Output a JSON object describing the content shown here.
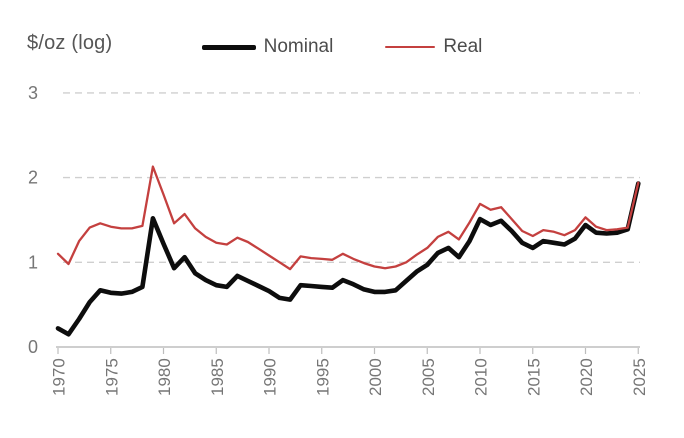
{
  "chart_data": {
    "type": "line",
    "title": "$/oz (log)",
    "xlabel": "",
    "ylabel": "$/oz (log)",
    "x": [
      1970,
      1971,
      1972,
      1973,
      1974,
      1975,
      1976,
      1977,
      1978,
      1979,
      1980,
      1981,
      1982,
      1983,
      1984,
      1985,
      1986,
      1987,
      1988,
      1989,
      1990,
      1991,
      1992,
      1993,
      1994,
      1995,
      1996,
      1997,
      1998,
      1999,
      2000,
      2001,
      2002,
      2003,
      2004,
      2005,
      2006,
      2007,
      2008,
      2009,
      2010,
      2011,
      2012,
      2013,
      2014,
      2015,
      2016,
      2017,
      2018,
      2019,
      2020,
      2021,
      2022,
      2023,
      2024,
      2025
    ],
    "series": [
      {
        "name": "Nominal",
        "color": "#0d0d0d",
        "stroke_width": 4.6,
        "values": [
          0.22,
          0.15,
          0.33,
          0.53,
          0.67,
          0.64,
          0.63,
          0.65,
          0.71,
          1.52,
          1.22,
          0.93,
          1.06,
          0.87,
          0.79,
          0.73,
          0.71,
          0.84,
          0.78,
          0.72,
          0.66,
          0.58,
          0.56,
          0.73,
          0.72,
          0.71,
          0.7,
          0.79,
          0.74,
          0.68,
          0.65,
          0.65,
          0.67,
          0.78,
          0.89,
          0.97,
          1.11,
          1.17,
          1.06,
          1.25,
          1.51,
          1.44,
          1.49,
          1.37,
          1.23,
          1.17,
          1.25,
          1.23,
          1.21,
          1.28,
          1.44,
          1.35,
          1.34,
          1.35,
          1.39,
          1.93
        ]
      },
      {
        "name": "Real",
        "color": "#c4403f",
        "stroke_width": 2.3,
        "values": [
          1.1,
          0.98,
          1.25,
          1.41,
          1.46,
          1.42,
          1.4,
          1.4,
          1.43,
          2.13,
          1.8,
          1.46,
          1.57,
          1.4,
          1.3,
          1.23,
          1.21,
          1.29,
          1.24,
          1.16,
          1.08,
          1.0,
          0.92,
          1.07,
          1.05,
          1.04,
          1.03,
          1.1,
          1.04,
          0.99,
          0.95,
          0.93,
          0.95,
          1.0,
          1.09,
          1.17,
          1.3,
          1.36,
          1.27,
          1.47,
          1.69,
          1.62,
          1.65,
          1.51,
          1.37,
          1.31,
          1.38,
          1.36,
          1.32,
          1.38,
          1.53,
          1.42,
          1.38,
          1.39,
          1.41,
          1.94
        ]
      }
    ],
    "xticks": [
      1970,
      1975,
      1980,
      1985,
      1990,
      1995,
      2000,
      2005,
      2010,
      2015,
      2020,
      2025
    ],
    "yticks": [
      0,
      1,
      2,
      3
    ],
    "xlim": [
      1970,
      2025
    ],
    "ylim": [
      0,
      3.05
    ],
    "grid": "horizontal dashed at y=1,2,3; solid axis baseline at y=0",
    "x_tick_label_rotation": -90,
    "legend_position": "top-center"
  },
  "colors": {
    "nominal_line": "#0d0d0d",
    "real_line": "#c4403f",
    "gridline": "#cfcfcf",
    "axis_line": "#bdbdbd",
    "tick_label": "#767676",
    "label_text": "#4c4c4c"
  }
}
